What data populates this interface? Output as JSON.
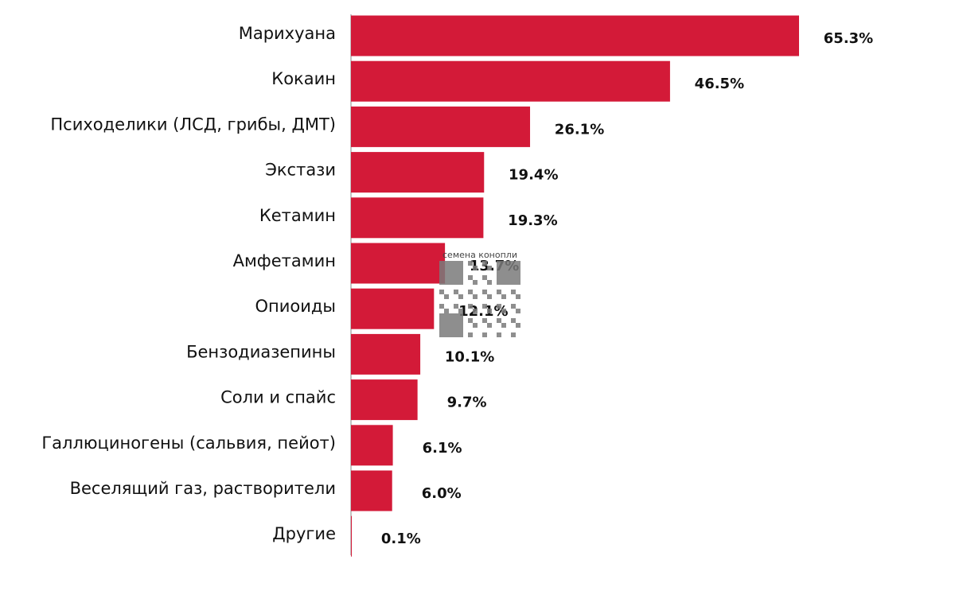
{
  "chart_data": {
    "type": "bar",
    "orientation": "horizontal",
    "categories": [
      "Марихуана",
      "Кокаин",
      "Психоделики (ЛСД, грибы, ДМТ)",
      "Экстази",
      "Кетамин",
      "Амфетамин",
      "Опиоиды",
      "Бензодиазепины",
      "Соли и спайс",
      "Галлюциногены (сальвия, пейот)",
      "Веселящий газ, растворители",
      "Другие"
    ],
    "values": [
      65.3,
      46.5,
      26.1,
      19.4,
      19.3,
      13.7,
      12.1,
      10.1,
      9.7,
      6.1,
      6.0,
      0.1
    ],
    "value_labels": [
      "65.3%",
      "46.5%",
      "26.1%",
      "19.4%",
      "19.3%",
      "13.7%",
      "12.1%",
      "10.1%",
      "9.7%",
      "6.1%",
      "6.0%",
      "0.1%"
    ],
    "color": "#d31a38",
    "watermark": "семена конопли"
  }
}
